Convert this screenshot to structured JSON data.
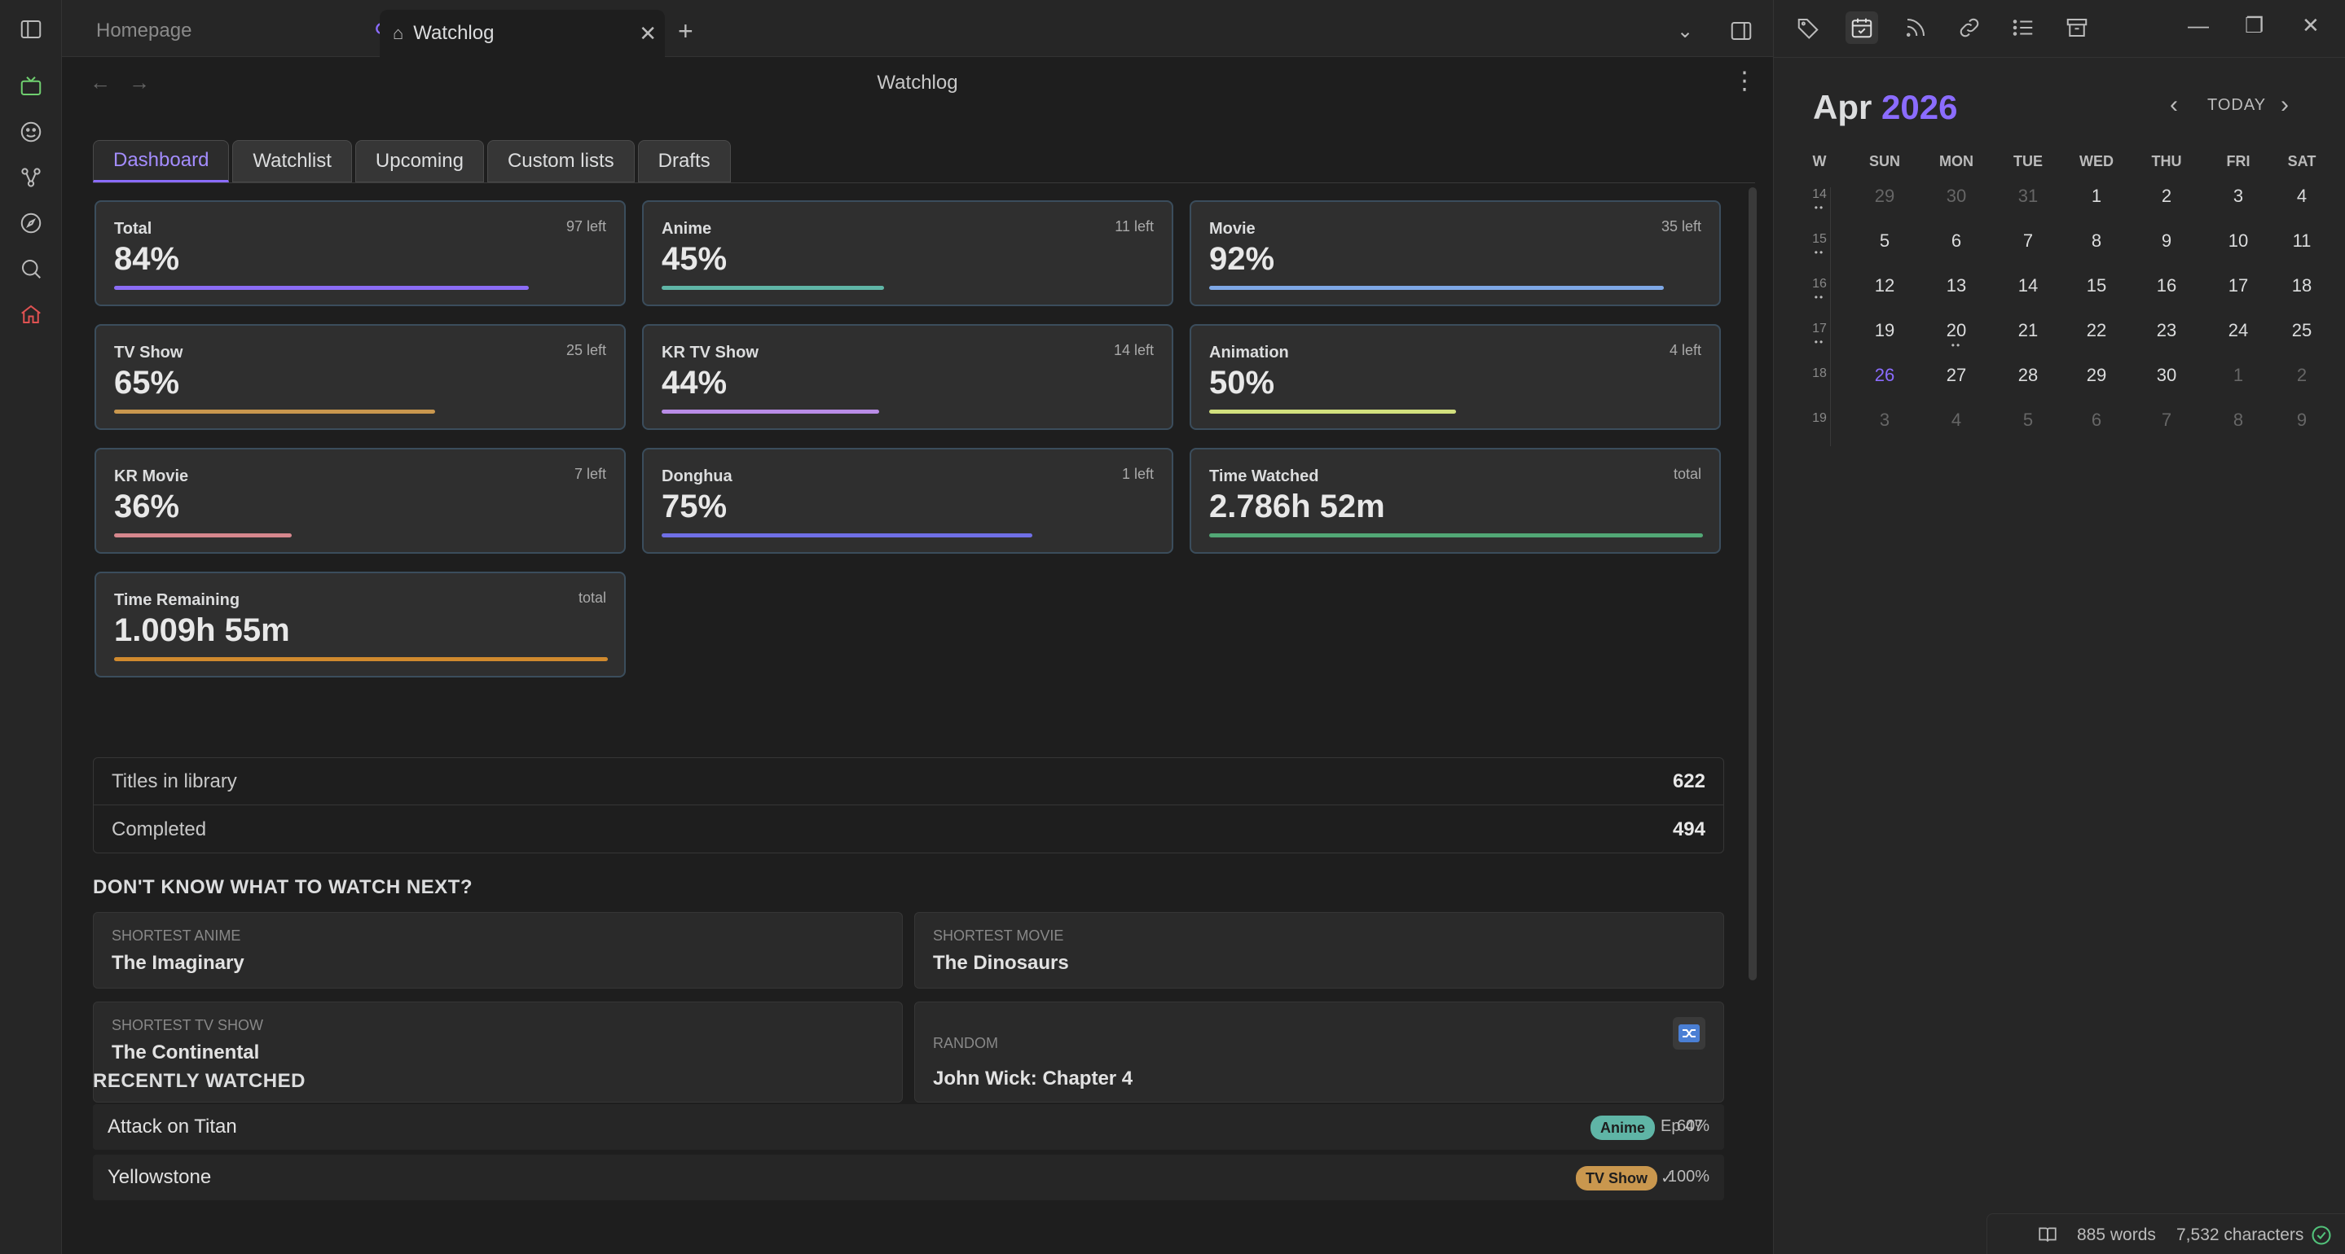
{
  "tabs": [
    {
      "label": "Homepage",
      "active": false
    },
    {
      "label": "Watchlog",
      "active": true
    }
  ],
  "page": {
    "title": "Watchlog"
  },
  "subtabs": [
    "Dashboard",
    "Watchlist",
    "Upcoming",
    "Custom lists",
    "Drafts"
  ],
  "cards": [
    {
      "label": "Total",
      "left": "97 left",
      "value": "84%",
      "fill": 0.84,
      "color": "#8b6cf5"
    },
    {
      "label": "Anime",
      "left": "11 left",
      "value": "45%",
      "fill": 0.45,
      "color": "#5fb5a6"
    },
    {
      "label": "Movie",
      "left": "35 left",
      "value": "92%",
      "fill": 0.92,
      "color": "#7ea8e6"
    },
    {
      "label": "TV Show",
      "left": "25 left",
      "value": "65%",
      "fill": 0.65,
      "color": "#c9974e"
    },
    {
      "label": "KR TV Show",
      "left": "14 left",
      "value": "44%",
      "fill": 0.44,
      "color": "#b98ce6"
    },
    {
      "label": "Animation",
      "left": "4 left",
      "value": "50%",
      "fill": 0.5,
      "color": "#d2e07e"
    },
    {
      "label": "KR Movie",
      "left": "7 left",
      "value": "36%",
      "fill": 0.36,
      "color": "#d6878d"
    },
    {
      "label": "Donghua",
      "left": "1 left",
      "value": "75%",
      "fill": 0.75,
      "color": "#6f6fe6"
    },
    {
      "label": "Time Watched",
      "left": "total",
      "value": "2.786h 52m",
      "fill": 1.0,
      "color": "#52a876"
    },
    {
      "label": "Time Remaining",
      "left": "total",
      "value": "1.009h 55m",
      "fill": 1.0,
      "color": "#d08a2e"
    }
  ],
  "stats": [
    {
      "label": "Titles in library",
      "value": "622"
    },
    {
      "label": "Completed",
      "value": "494"
    }
  ],
  "suggest": {
    "heading": "DON'T KNOW WHAT TO WATCH NEXT?",
    "items": [
      {
        "caption": "SHORTEST ANIME",
        "title": "The Imaginary"
      },
      {
        "caption": "SHORTEST MOVIE",
        "title": "The Dinosaurs"
      },
      {
        "caption": "SHORTEST TV SHOW",
        "title": "The Continental"
      },
      {
        "caption": "RANDOM",
        "title": "John Wick: Chapter 4"
      }
    ]
  },
  "recent": {
    "heading": "RECENTLY WATCHED",
    "items": [
      {
        "title": "Attack on Titan",
        "badge": "Anime",
        "badge_color": "#5fb5a6",
        "ep": "Ep 47",
        "pct": "60%"
      },
      {
        "title": "Yellowstone",
        "badge": "TV Show",
        "badge_color": "#c9974e",
        "ep": "✓",
        "pct": "100%"
      }
    ]
  },
  "calendar": {
    "month": "Apr",
    "year": "2026",
    "today_label": "TODAY",
    "weekdays": [
      "W",
      "SUN",
      "MON",
      "TUE",
      "WED",
      "THU",
      "FRI",
      "SAT"
    ],
    "weeks": [
      {
        "w": "14",
        "dots": "••",
        "days": [
          "29",
          "30",
          "31",
          "1",
          "2",
          "3",
          "4"
        ],
        "dim": [
          0,
          1,
          2
        ]
      },
      {
        "w": "15",
        "dots": "••",
        "days": [
          "5",
          "6",
          "7",
          "8",
          "9",
          "10",
          "11"
        ],
        "dim": []
      },
      {
        "w": "16",
        "dots": "••",
        "days": [
          "12",
          "13",
          "14",
          "15",
          "16",
          "17",
          "18"
        ],
        "dim": []
      },
      {
        "w": "17",
        "dots": "••",
        "days": [
          "19",
          "20",
          "21",
          "22",
          "23",
          "24",
          "25"
        ],
        "dim": []
      },
      {
        "w": "18",
        "dots": "",
        "days": [
          "26",
          "27",
          "28",
          "29",
          "30",
          "1",
          "2"
        ],
        "dim": [
          5,
          6
        ]
      },
      {
        "w": "19",
        "dots": "",
        "days": [
          "3",
          "4",
          "5",
          "6",
          "7",
          "8",
          "9"
        ],
        "dim": [
          0,
          1,
          2,
          3,
          4,
          5,
          6
        ]
      }
    ],
    "today_day": "26",
    "day20_dots": "••"
  },
  "status": {
    "words": "885 words",
    "chars": "7,532 characters"
  },
  "colors": {
    "accent": "#8b6cff",
    "background": "#1e1e1e",
    "panel": "#262626"
  }
}
